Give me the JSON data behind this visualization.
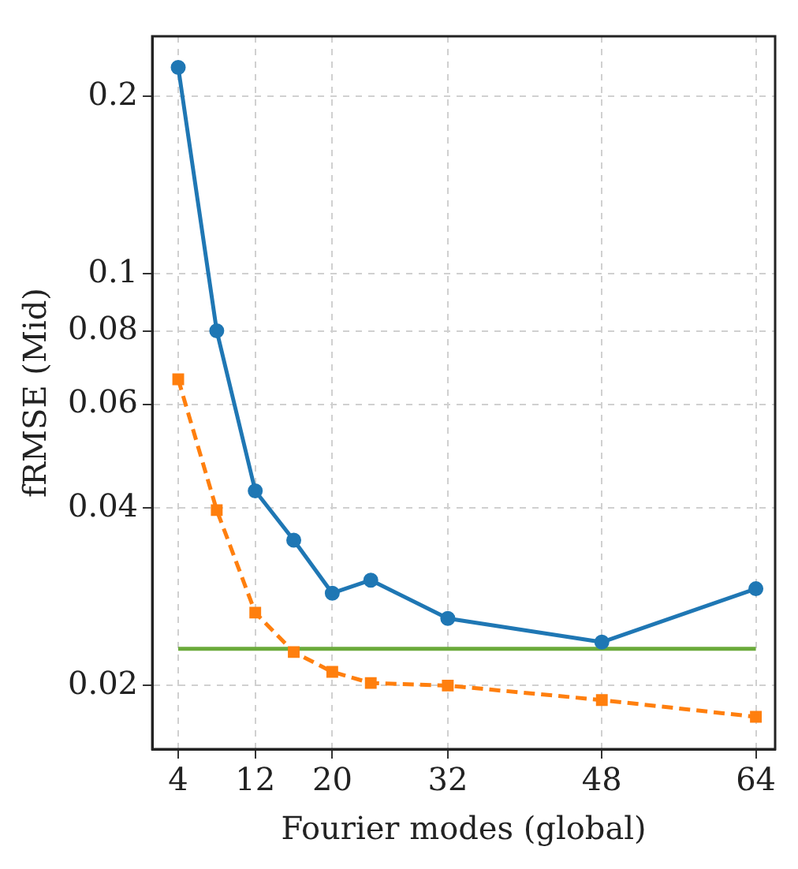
{
  "chart_data": {
    "type": "line",
    "xlabel": "Fourier modes (global)",
    "ylabel": "fRMSE (Mid)",
    "log": "y",
    "grid": true,
    "legend": false,
    "xlim": [
      1.3,
      66
    ],
    "xticks": [
      4,
      12,
      20,
      32,
      48,
      64
    ],
    "ylim": [
      0.0156,
      0.253
    ],
    "yticks": [
      0.02,
      0.04,
      0.06,
      0.08,
      0.1,
      0.2
    ],
    "series": [
      {
        "color": "#1f77b4",
        "marker": "circle",
        "line_style": "solid",
        "x": [
          4,
          8,
          12,
          16,
          20,
          24,
          32,
          48,
          64
        ],
        "values": [
          0.224,
          0.08,
          0.0428,
          0.0353,
          0.0287,
          0.0302,
          0.026,
          0.0237,
          0.0292
        ]
      },
      {
        "color": "#ff7f0e",
        "marker": "square",
        "line_style": "dashed",
        "x": [
          4,
          8,
          12,
          16,
          20,
          24,
          32,
          48,
          64
        ],
        "values": [
          0.0662,
          0.0397,
          0.0266,
          0.0228,
          0.0211,
          0.0202,
          0.02,
          0.0189,
          0.0177
        ]
      },
      {
        "color": "#6aaa3a",
        "marker": "none",
        "line_style": "solid",
        "x": [
          4,
          64
        ],
        "values": [
          0.0231,
          0.0231
        ]
      }
    ]
  }
}
